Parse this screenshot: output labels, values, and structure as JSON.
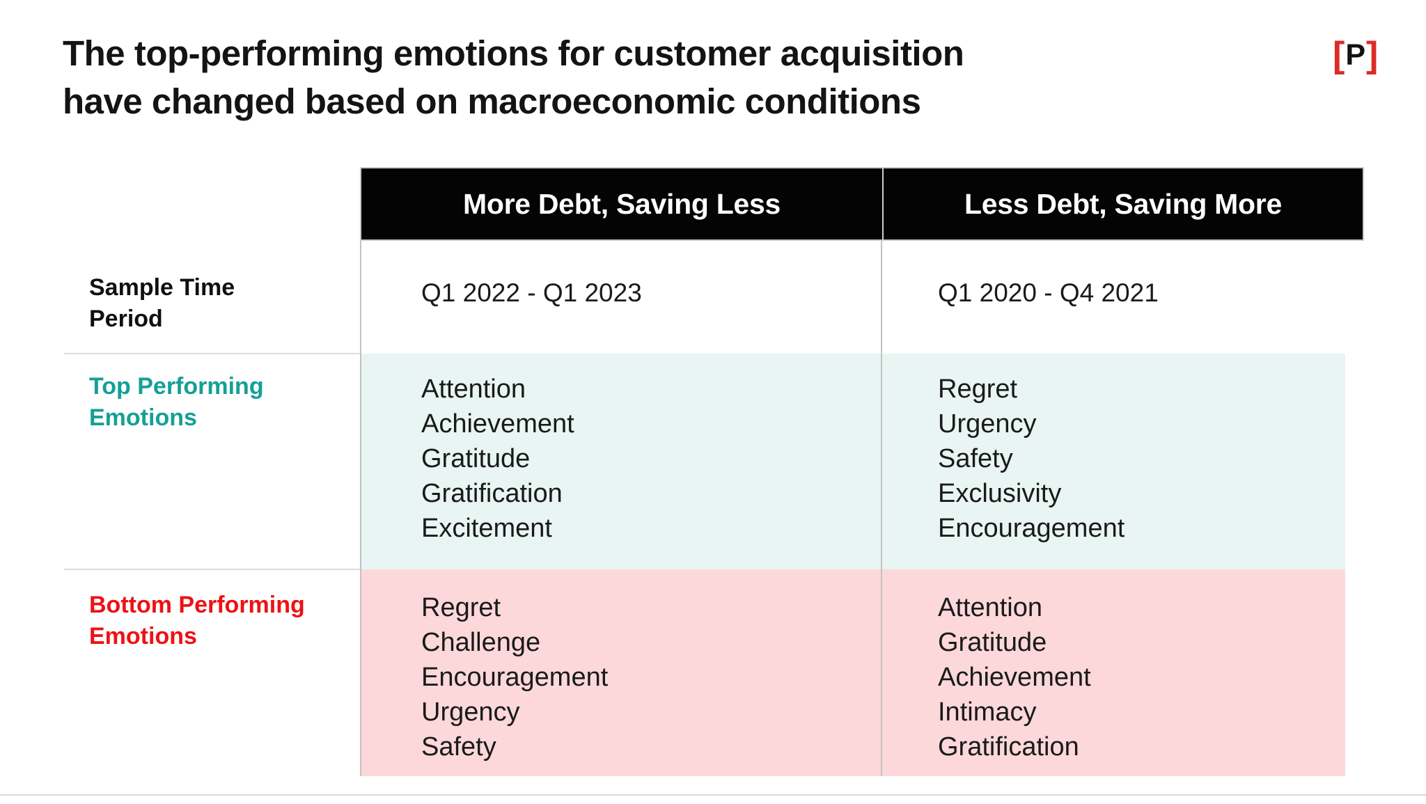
{
  "title": {
    "line1": "The top-performing emotions for customer acquisition",
    "line2": "have changed based on macroeconomic conditions"
  },
  "logo": {
    "open_bracket": "[",
    "letter": "P",
    "close_bracket": "]"
  },
  "table": {
    "headers": {
      "col1": "More Debt, Saving Less",
      "col2": "Less Debt, Saving More"
    },
    "rows": {
      "sample": {
        "label_line1": "Sample Time",
        "label_line2": "Period",
        "col1_value": "Q1 2022 - Q1 2023",
        "col2_value": "Q1 2020 - Q4 2021"
      },
      "top": {
        "label_line1": "Top Performing",
        "label_line2": "Emotions",
        "col1_emotions": [
          "Attention",
          "Achievement",
          "Gratitude",
          "Gratification",
          "Excitement"
        ],
        "col2_emotions": [
          "Regret",
          "Urgency",
          "Safety",
          "Exclusivity",
          "Encouragement"
        ]
      },
      "bottom": {
        "label_line1": "Bottom Performing",
        "label_line2": "Emotions",
        "col1_emotions": [
          "Regret",
          "Challenge",
          "Encouragement",
          "Urgency",
          "Safety"
        ],
        "col2_emotions": [
          "Attention",
          "Gratitude",
          "Achievement",
          "Intimacy",
          "Gratification"
        ]
      }
    }
  },
  "colors": {
    "header_bg": "#040404",
    "header_text": "#ffffff",
    "top_accent": "#14a096",
    "top_row_bg": "#e8f5f2",
    "bottom_accent": "#ee1115",
    "bottom_row_bg": "#fcd8da",
    "logo_bracket": "#dd2b28"
  }
}
